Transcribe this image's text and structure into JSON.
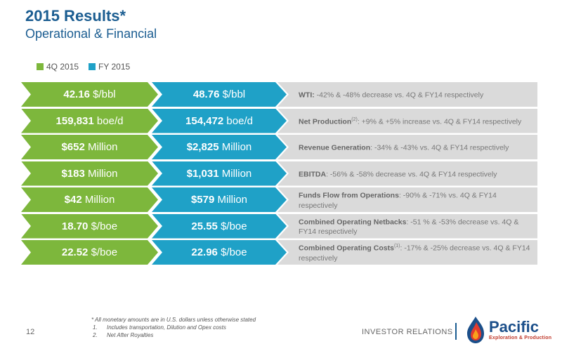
{
  "header": {
    "title": "2015 Results*",
    "subtitle": "Operational & Financial"
  },
  "legend": [
    {
      "label": "4Q 2015",
      "color": "#7db73c"
    },
    {
      "label": "FY 2015",
      "color": "#1fa1c7"
    }
  ],
  "rows": [
    {
      "q4_num": "42.16",
      "q4_unit": "$/bbl",
      "fy_num": "48.76",
      "fy_unit": "$/bbl",
      "desc_label": "WTI:",
      "desc_sup": "",
      "desc_text": "-42% & -48% decrease vs. 4Q & FY14 respectively"
    },
    {
      "q4_num": "159,831",
      "q4_unit": "boe/d",
      "fy_num": "154,472",
      "fy_unit": "boe/d",
      "desc_label": "Net Production",
      "desc_sup": "(2)",
      "desc_text": ": +9% & +5% increase vs. 4Q & FY14 respectively"
    },
    {
      "q4_num": "$652",
      "q4_unit": "Million",
      "fy_num": "$2,825",
      "fy_unit": "Million",
      "desc_label": "Revenue Generation",
      "desc_sup": "",
      "desc_text": ": -34% & -43% vs. 4Q & FY14 respectively"
    },
    {
      "q4_num": "$183",
      "q4_unit": "Million",
      "fy_num": "$1,031",
      "fy_unit": "Million",
      "desc_label": "EBITDA",
      "desc_sup": "",
      "desc_text": ": -56% & -58% decrease vs. 4Q & FY14 respectively"
    },
    {
      "q4_num": "$42",
      "q4_unit": "Million",
      "fy_num": "$579",
      "fy_unit": "Million",
      "desc_label": "Funds Flow from Operations",
      "desc_sup": "",
      "desc_text": ": -90% & -71% vs. 4Q & FY14 respectively"
    },
    {
      "q4_num": "18.70",
      "q4_unit": "$/boe",
      "fy_num": "25.55",
      "fy_unit": "$/boe",
      "desc_label": "Combined Operating Netbacks",
      "desc_sup": "",
      "desc_text": ": -51 % & -53% decrease vs. 4Q & FY14 respectively"
    },
    {
      "q4_num": "22.52",
      "q4_unit": "$/boe",
      "fy_num": "22.96",
      "fy_unit": "$/boe",
      "desc_label": "Combined Operating Costs",
      "desc_sup": "(1)",
      "desc_text": ": -17% & -25% decrease vs. 4Q & FY14 respectively"
    }
  ],
  "footer": {
    "page_number": "12",
    "note": "* All monetary amounts are in U.S. dollars unless otherwise stated",
    "footnotes": [
      {
        "n": "1.",
        "text": "Includes transportation, Dilution and Opex costs"
      },
      {
        "n": "2.",
        "text": "Net After Royalties"
      }
    ],
    "investor_relations": "INVESTOR RELATIONS"
  },
  "logo": {
    "name": "Pacific",
    "tagline": "Exploration & Production",
    "icon": "flame-logo-icon"
  }
}
